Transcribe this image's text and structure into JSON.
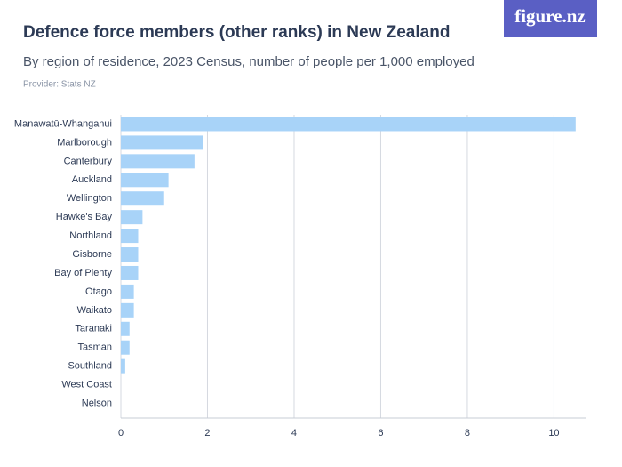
{
  "logo": "figure.nz",
  "chart_data": {
    "type": "barh",
    "title": "Defence force members (other ranks) in New Zealand",
    "subtitle": "By region of residence, 2023 Census, number of people per 1,000 employed",
    "provider": "Provider: Stats NZ",
    "categories": [
      "Manawatū-Whanganui",
      "Marlborough",
      "Canterbury",
      "Auckland",
      "Wellington",
      "Hawke's Bay",
      "Northland",
      "Gisborne",
      "Bay of Plenty",
      "Otago",
      "Waikato",
      "Taranaki",
      "Tasman",
      "Southland",
      "West Coast",
      "Nelson"
    ],
    "values": [
      10.5,
      1.9,
      1.7,
      1.1,
      1.0,
      0.5,
      0.4,
      0.4,
      0.4,
      0.3,
      0.3,
      0.2,
      0.2,
      0.1,
      0,
      0
    ],
    "color": "#a8d3f8",
    "xlim": [
      0,
      10.75
    ],
    "xticks": [
      0,
      2,
      4,
      6,
      8,
      10
    ],
    "grid": true
  }
}
